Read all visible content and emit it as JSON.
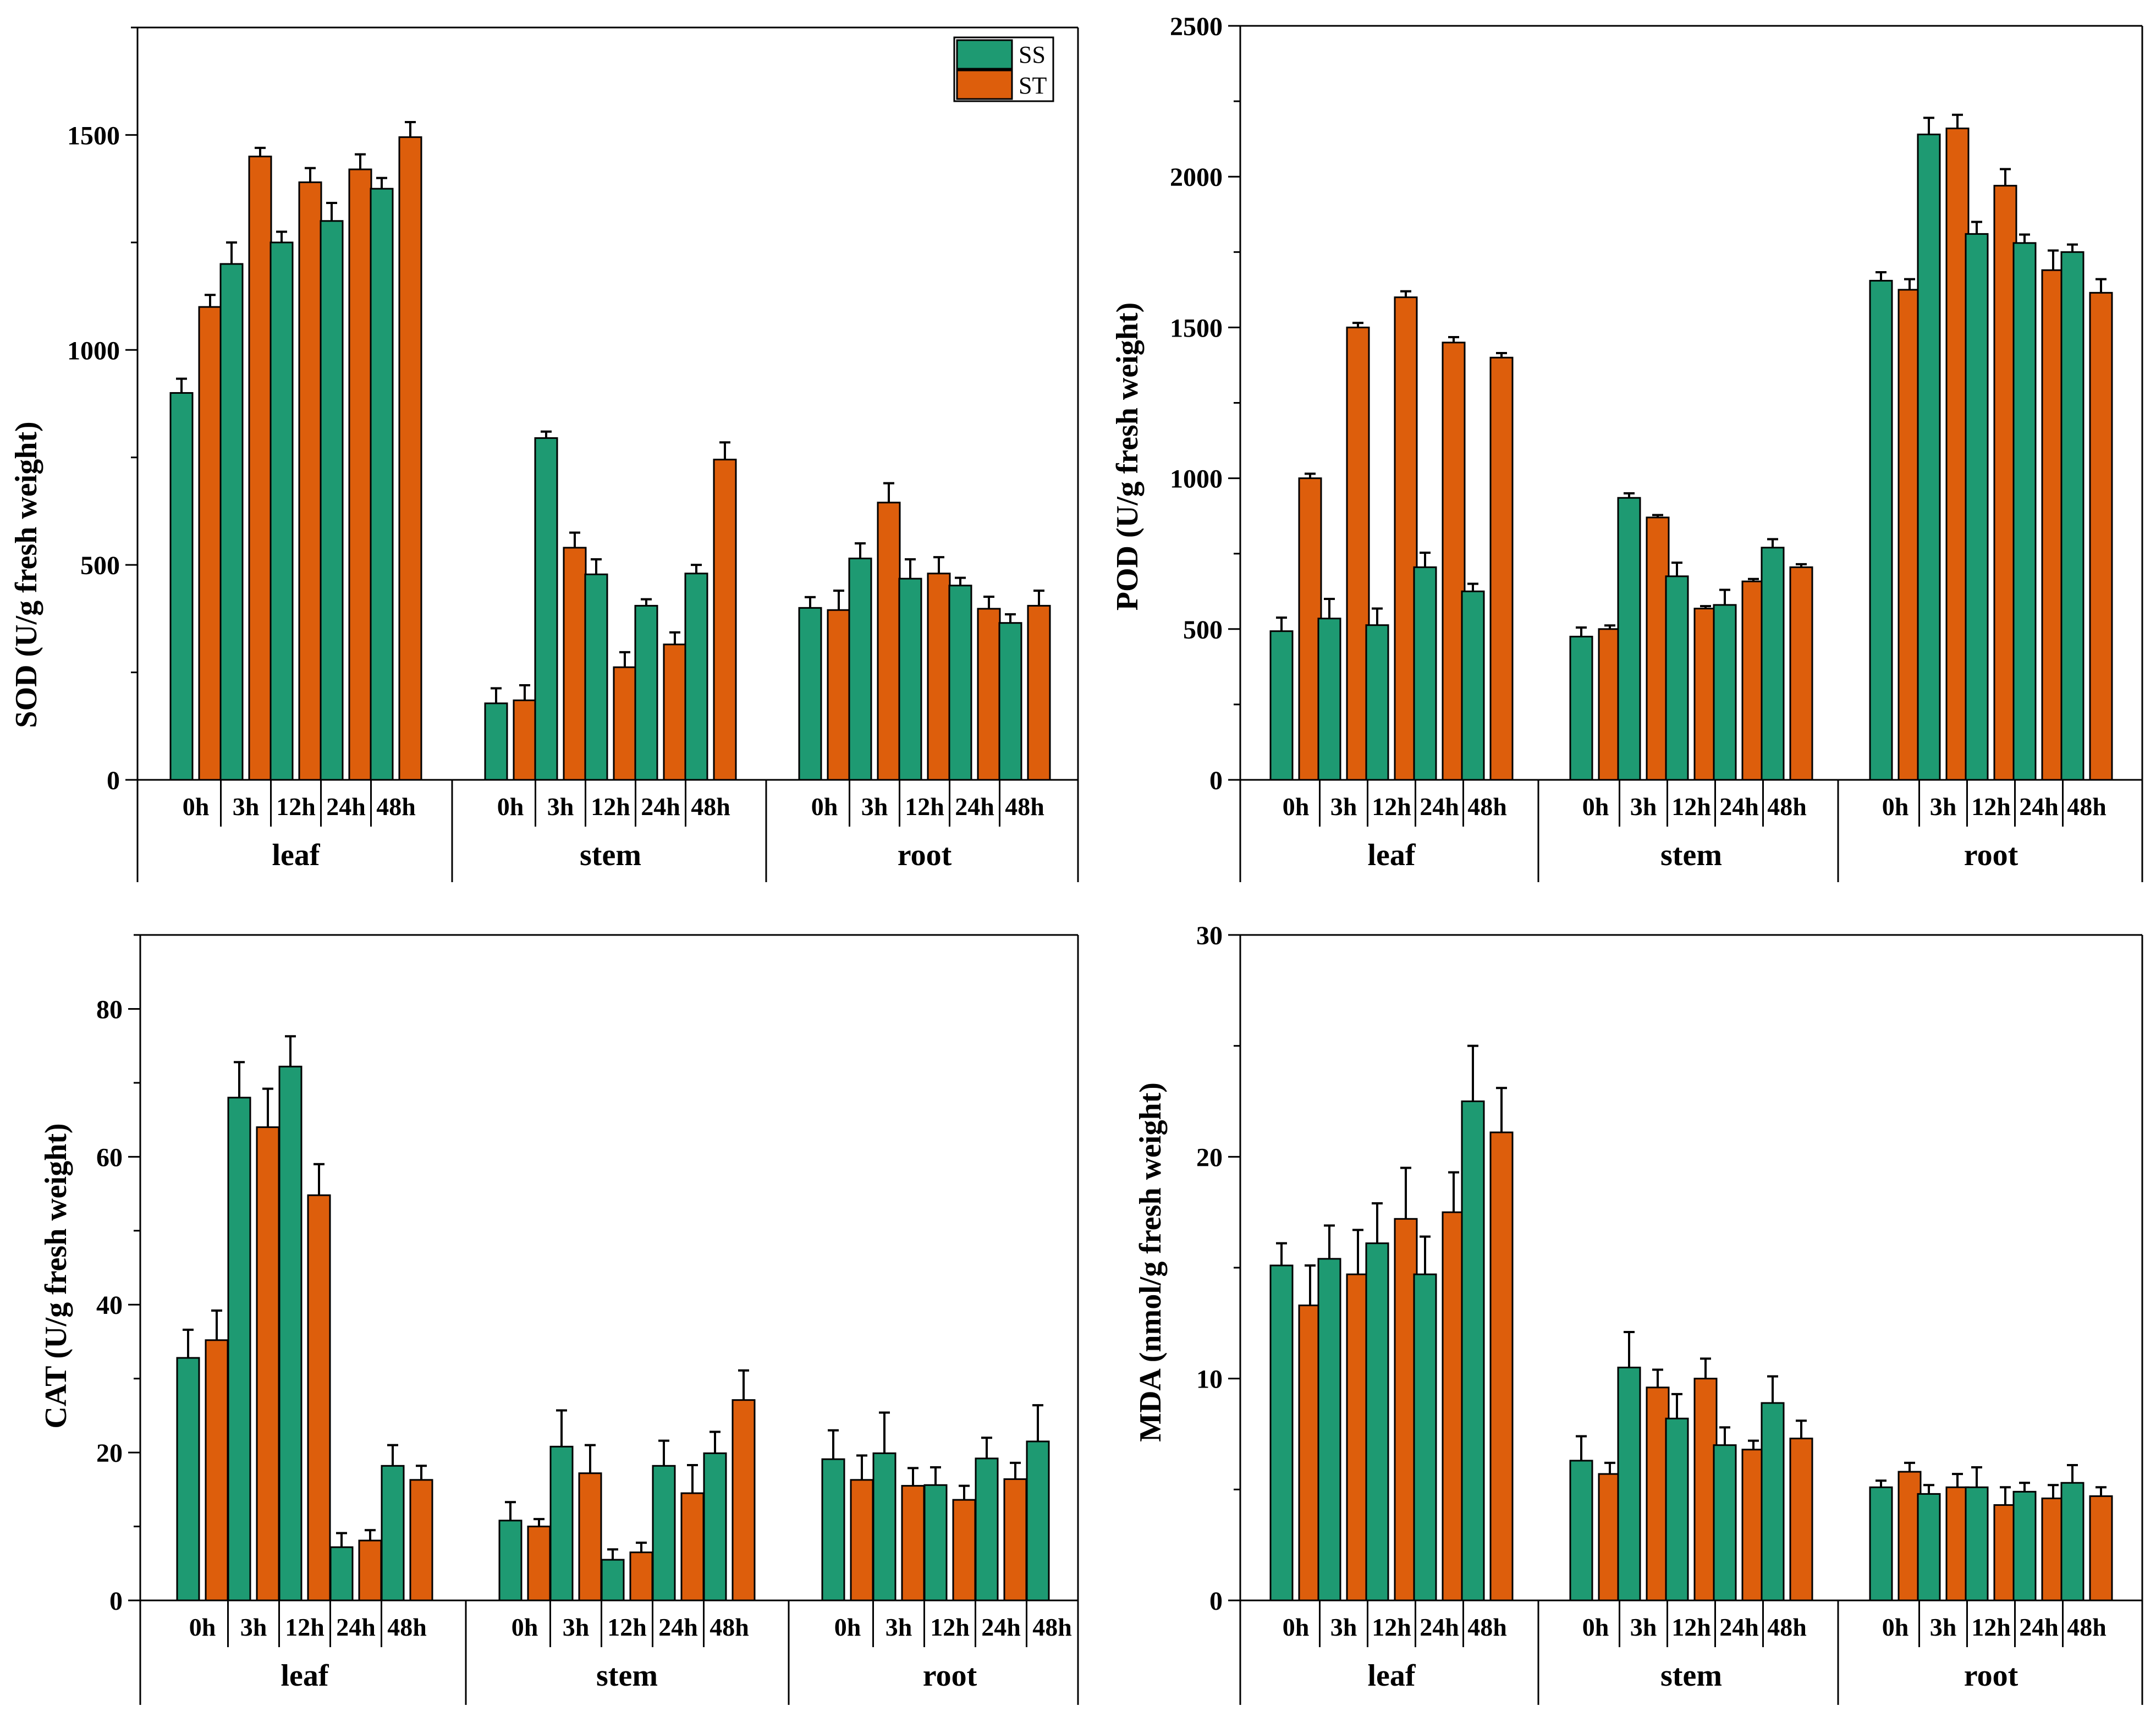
{
  "colors": {
    "SS": "#1e9a72",
    "ST": "#dd5e0c",
    "axis": "#000000"
  },
  "chart_data": [
    {
      "id": "sod",
      "type": "bar",
      "ylabel": "SOD (U/g fresh weight)",
      "ylim": [
        0,
        1750
      ],
      "yticks": [
        0,
        500,
        1000,
        1500
      ],
      "ytick_labels": [
        "0",
        "500",
        "1000",
        "1500"
      ],
      "tissues": [
        "leaf",
        "stem",
        "root"
      ],
      "times": [
        "0h",
        "3h",
        "12h",
        "24h",
        "48h"
      ],
      "legend": [
        "SS",
        "ST"
      ],
      "series": [
        {
          "name": "SS",
          "values": [
            [
              900,
              1200,
              1250,
              1300,
              1375
            ],
            [
              178,
              795,
              478,
              405,
              480
            ],
            [
              400,
              515,
              468,
              452,
              365
            ]
          ],
          "errors": [
            [
              33,
              50,
              25,
              42,
              25
            ],
            [
              35,
              15,
              35,
              15,
              20
            ],
            [
              25,
              35,
              45,
              18,
              20
            ]
          ]
        },
        {
          "name": "ST",
          "values": [
            [
              1100,
              1450,
              1390,
              1420,
              1495
            ],
            [
              185,
              540,
              262,
              315,
              745
            ],
            [
              395,
              645,
              480,
              398,
              405
            ]
          ],
          "errors": [
            [
              28,
              20,
              33,
              35,
              35
            ],
            [
              35,
              35,
              35,
              28,
              40
            ],
            [
              45,
              45,
              38,
              28,
              35
            ]
          ]
        }
      ]
    },
    {
      "id": "pod",
      "type": "bar",
      "ylabel": "POD (U/g fresh weight)",
      "ylim": [
        0,
        2500
      ],
      "yticks": [
        0,
        500,
        1000,
        1500,
        2000,
        2500
      ],
      "ytick_labels": [
        "0",
        "500",
        "1000",
        "1500",
        "2000",
        "2500"
      ],
      "tissues": [
        "leaf",
        "stem",
        "root"
      ],
      "times": [
        "0h",
        "3h",
        "12h",
        "24h",
        "48h"
      ],
      "series": [
        {
          "name": "SS",
          "values": [
            [
              493,
              535,
              513,
              705,
              625
            ],
            [
              475,
              935,
              675,
              580,
              770
            ],
            [
              1655,
              2140,
              1810,
              1780,
              1750
            ]
          ],
          "errors": [
            [
              45,
              65,
              55,
              48,
              25
            ],
            [
              30,
              15,
              45,
              50,
              28
            ],
            [
              28,
              55,
              40,
              28,
              25
            ]
          ]
        },
        {
          "name": "ST",
          "values": [
            [
              1000,
              1500,
              1600,
              1450,
              1400
            ],
            [
              500,
              870,
              568,
              658,
              705
            ],
            [
              1625,
              2160,
              1970,
              1690,
              1615
            ]
          ],
          "errors": [
            [
              15,
              15,
              20,
              18,
              15
            ],
            [
              12,
              8,
              8,
              8,
              10
            ],
            [
              35,
              45,
              55,
              65,
              45
            ]
          ]
        }
      ]
    },
    {
      "id": "cat",
      "type": "bar",
      "ylabel": "CAT (U/g fresh weight)",
      "ylim": [
        0,
        90
      ],
      "yticks": [
        0,
        20,
        40,
        60,
        80
      ],
      "ytick_labels": [
        "0",
        "20",
        "40",
        "60",
        "80"
      ],
      "tissues": [
        "leaf",
        "stem",
        "root"
      ],
      "times": [
        "0h",
        "3h",
        "12h",
        "24h",
        "48h"
      ],
      "series": [
        {
          "name": "SS",
          "values": [
            [
              32.8,
              68,
              72.2,
              7.2,
              18.2
            ],
            [
              10.8,
              20.8,
              5.5,
              18.2,
              19.9
            ],
            [
              19.1,
              19.9,
              15.6,
              19.2,
              21.5
            ]
          ],
          "errors": [
            [
              3.8,
              4.8,
              4.1,
              1.9,
              2.8
            ],
            [
              2.5,
              4.9,
              1.4,
              3.4,
              2.9
            ],
            [
              3.9,
              5.5,
              2.4,
              2.8,
              4.9
            ]
          ]
        },
        {
          "name": "ST",
          "values": [
            [
              35.2,
              64,
              54.8,
              8.1,
              16.3
            ],
            [
              10,
              17.2,
              6.5,
              14.5,
              27.1
            ],
            [
              16.3,
              15.5,
              13.6,
              16.4,
              0
            ]
          ],
          "errors": [
            [
              4,
              5.2,
              4.2,
              1.4,
              1.9
            ],
            [
              1,
              3.8,
              1.3,
              3.8,
              4
            ],
            [
              3.3,
              2.4,
              1.9,
              2.2,
              0
            ]
          ]
        }
      ]
    },
    {
      "id": "mda",
      "type": "bar",
      "ylabel": "MDA (nmol/g fresh weight)",
      "ylim": [
        0,
        30
      ],
      "yticks": [
        0,
        10,
        20,
        30
      ],
      "ytick_labels": [
        "0",
        "10",
        "20",
        "30"
      ],
      "tissues": [
        "leaf",
        "stem",
        "root"
      ],
      "times": [
        "0h",
        "3h",
        "12h",
        "24h",
        "48h"
      ],
      "series": [
        {
          "name": "SS",
          "values": [
            [
              15.1,
              15.4,
              16.1,
              14.7,
              22.5
            ],
            [
              6.3,
              10.5,
              8.2,
              7,
              8.9
            ],
            [
              5.1,
              4.8,
              5.1,
              4.9,
              5.3
            ]
          ],
          "errors": [
            [
              1,
              1.5,
              1.8,
              1.7,
              2.5
            ],
            [
              1.1,
              1.6,
              1.1,
              0.8,
              1.2
            ],
            [
              0.3,
              0.4,
              0.9,
              0.4,
              0.8
            ]
          ]
        },
        {
          "name": "ST",
          "values": [
            [
              13.3,
              14.7,
              17.2,
              17.5,
              21.1
            ],
            [
              5.7,
              9.6,
              10,
              6.8,
              7.3
            ],
            [
              5.8,
              5.1,
              4.3,
              4.6,
              4.7
            ]
          ],
          "errors": [
            [
              1.8,
              2,
              2.3,
              1.8,
              2
            ],
            [
              0.5,
              0.8,
              0.9,
              0.4,
              0.8
            ],
            [
              0.4,
              0.6,
              0.8,
              0.6,
              0.4
            ]
          ]
        }
      ]
    }
  ]
}
